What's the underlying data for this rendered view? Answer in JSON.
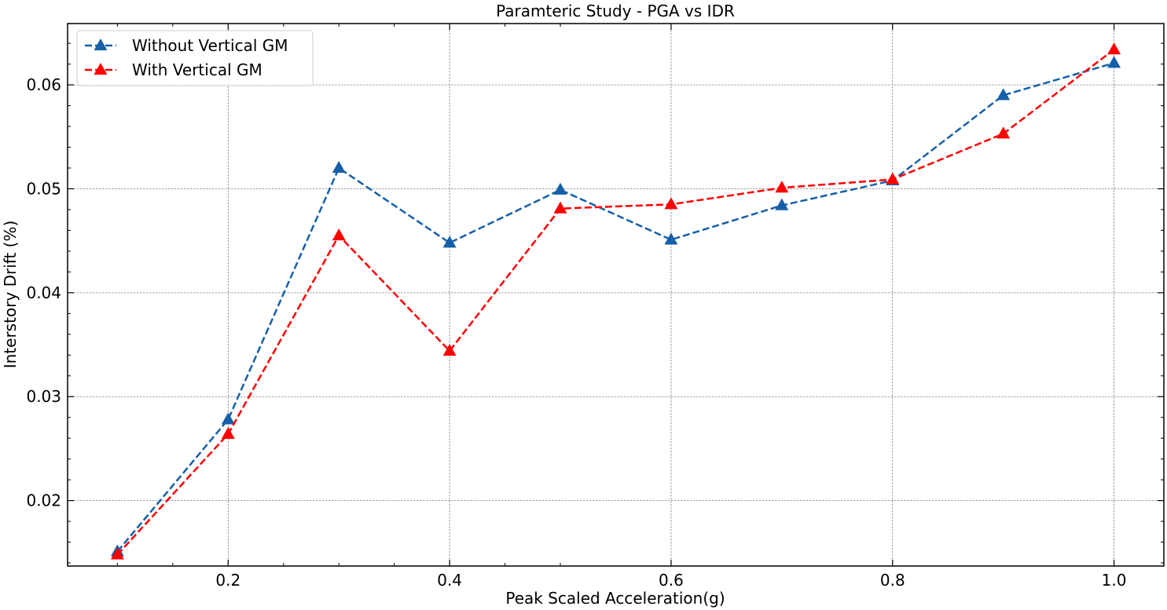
{
  "chart_data": {
    "type": "line",
    "title": "Paramteric Study - PGA vs IDR",
    "xlabel": "Peak Scaled Acceleration(g)",
    "ylabel": "Interstory Drift (%)",
    "x": [
      0.1,
      0.2,
      0.3,
      0.4,
      0.5,
      0.6,
      0.7,
      0.8,
      0.9,
      1.0
    ],
    "xlim": [
      0.055,
      1.045
    ],
    "ylim": [
      0.0137,
      0.0659
    ],
    "x_ticks": [
      0.2,
      0.4,
      0.6,
      0.8,
      1.0
    ],
    "x_tick_labels": [
      "0.2",
      "0.4",
      "0.6",
      "0.8",
      "1.0"
    ],
    "y_ticks": [
      0.02,
      0.03,
      0.04,
      0.05,
      0.06
    ],
    "y_tick_labels": [
      "0.02",
      "0.03",
      "0.04",
      "0.05",
      "0.06"
    ],
    "grid": true,
    "legend_position": "top-left",
    "series": [
      {
        "name": "Without Vertical GM",
        "color": "#1560a8",
        "line_style": "dashed",
        "marker": "triangle-up",
        "values": [
          0.0151,
          0.0278,
          0.052,
          0.0448,
          0.0499,
          0.0451,
          0.0484,
          0.0508,
          0.059,
          0.0621
        ]
      },
      {
        "name": "With Vertical GM",
        "color": "#ff0000",
        "line_style": "dashed",
        "marker": "triangle-up",
        "values": [
          0.0148,
          0.0264,
          0.0455,
          0.0344,
          0.0481,
          0.0485,
          0.0501,
          0.0509,
          0.0553,
          0.0634
        ]
      }
    ]
  }
}
